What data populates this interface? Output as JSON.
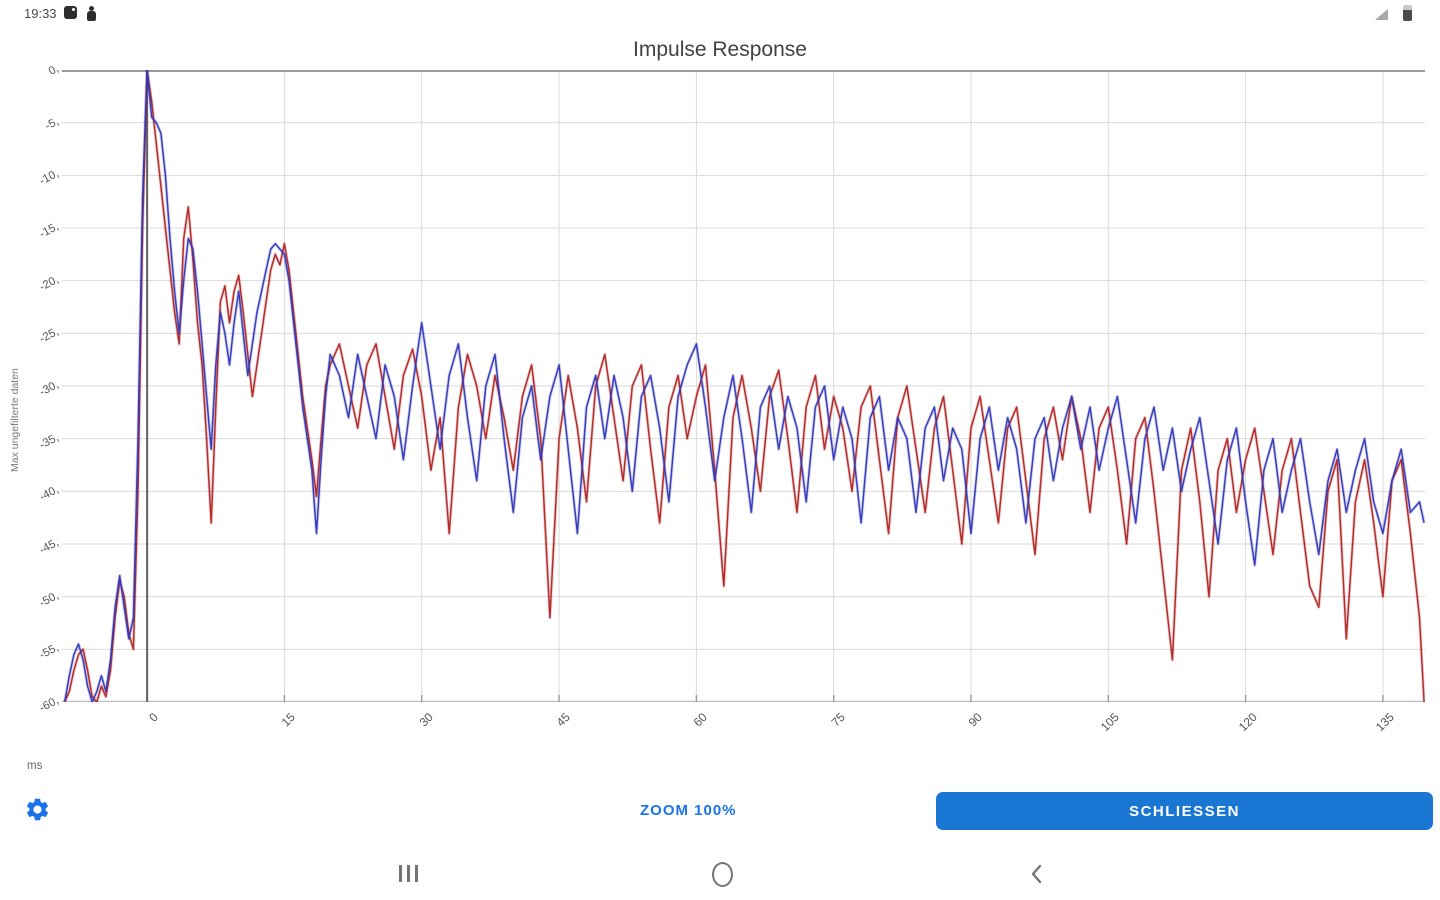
{
  "colors": {
    "accent": "#1a73e8",
    "close_button_bg": "#1976d2",
    "series_red": "#b02525",
    "series_blue": "#3137b8",
    "grid_line": "#d9d9d9",
    "axis_line": "#9a9a9a",
    "bottom_line": "#bdbdbd",
    "marker_line": "#606060",
    "tick_text": "#555555"
  },
  "status_bar": {
    "time": "19:33"
  },
  "chart": {
    "title": "Impulse Response",
    "y_axis_label": "Max ungefilterte daten",
    "x_unit_label": "ms"
  },
  "footer": {
    "zoom_button": "ZOOM 100%",
    "close_button": "SCHLIESSEN"
  },
  "chart_data": {
    "type": "line",
    "title": "Impulse Response",
    "xlabel": "ms",
    "ylabel": "Max ungefilterte daten",
    "xlim": [
      -9.3,
      139.6
    ],
    "ylim": [
      -60,
      0
    ],
    "grid": true,
    "legend": "none",
    "marker_line_x": 0,
    "x_ticks": [
      0,
      15,
      30,
      45,
      60,
      75,
      90,
      105,
      120,
      135
    ],
    "x_tick_labels": [
      "0",
      "15",
      "30",
      "45",
      "60",
      "75",
      "90",
      "105",
      "120",
      "135"
    ],
    "y_ticks": [
      0,
      -5,
      -10,
      -15,
      -20,
      -25,
      -30,
      -35,
      -40,
      -45,
      -50,
      -55,
      -60
    ],
    "y_tick_labels": [
      "0,",
      "-5,",
      "-10,",
      "-15,",
      "-20,",
      "-25,",
      "-30,",
      "-35,",
      "-40,",
      "-45,",
      "-50,",
      "-55,",
      "-60,"
    ],
    "x": [
      -9,
      -8.5,
      -8,
      -7.5,
      -7,
      -6.5,
      -6,
      -5.5,
      -5,
      -4.5,
      -4,
      -3.5,
      -3,
      -2.5,
      -2,
      -1.5,
      -1,
      -0.5,
      0,
      0.5,
      1,
      1.5,
      2,
      2.5,
      3,
      3.5,
      4,
      4.5,
      5,
      5.5,
      6,
      6.5,
      7,
      7.5,
      8,
      8.5,
      9,
      9.5,
      10,
      10.5,
      11,
      11.5,
      12,
      12.5,
      13,
      13.5,
      14,
      14.5,
      15,
      15.5,
      16,
      16.5,
      17,
      17.5,
      18,
      18.5,
      19,
      19.5,
      20,
      21,
      22,
      23,
      24,
      25,
      26,
      27,
      28,
      29,
      30,
      31,
      32,
      33,
      34,
      35,
      36,
      37,
      38,
      39,
      40,
      41,
      42,
      43,
      44,
      45,
      46,
      47,
      48,
      49,
      50,
      51,
      52,
      53,
      54,
      55,
      56,
      57,
      58,
      59,
      60,
      61,
      62,
      63,
      64,
      65,
      66,
      67,
      68,
      69,
      70,
      71,
      72,
      73,
      74,
      75,
      76,
      77,
      78,
      79,
      80,
      81,
      82,
      83,
      84,
      85,
      86,
      87,
      88,
      89,
      90,
      91,
      92,
      93,
      94,
      95,
      96,
      97,
      98,
      99,
      100,
      101,
      102,
      103,
      104,
      105,
      106,
      107,
      108,
      109,
      110,
      111,
      112,
      113,
      114,
      115,
      116,
      117,
      118,
      119,
      120,
      121,
      122,
      123,
      124,
      125,
      126,
      127,
      128,
      129,
      130,
      131,
      132,
      133,
      134,
      135,
      136,
      137,
      138,
      139,
      139.5
    ],
    "series": [
      {
        "name": "red-channel",
        "color": "#b02525",
        "values": [
          -60,
          -59,
          -57,
          -55.5,
          -55,
          -57,
          -59.5,
          -60,
          -58.5,
          -59.5,
          -57,
          -52,
          -48.5,
          -50,
          -53.5,
          -55,
          -40,
          -15,
          0,
          -3,
          -7,
          -11,
          -15,
          -19,
          -23,
          -26,
          -16,
          -13,
          -18,
          -24,
          -28,
          -35,
          -43,
          -32,
          -22,
          -20.5,
          -24,
          -21,
          -19.5,
          -23,
          -27,
          -31,
          -28,
          -25,
          -22,
          -19,
          -17.5,
          -18.5,
          -16.5,
          -19,
          -23,
          -27,
          -31,
          -34,
          -37,
          -40.5,
          -35,
          -30,
          -28,
          -26,
          -30,
          -34,
          -28,
          -26,
          -31,
          -36,
          -29,
          -26.5,
          -31,
          -38,
          -33,
          -44,
          -32,
          -27,
          -30,
          -35,
          -29,
          -33,
          -38,
          -31,
          -28,
          -35,
          -52,
          -35,
          -29,
          -34,
          -41,
          -30,
          -27,
          -33,
          -39,
          -30,
          -28,
          -36,
          -43,
          -32,
          -29,
          -35,
          -31,
          -28,
          -38,
          -49,
          -33,
          -29,
          -34,
          -40,
          -31,
          -28.5,
          -35,
          -42,
          -32,
          -29,
          -36,
          -31,
          -34,
          -40,
          -32,
          -30,
          -37,
          -44,
          -33,
          -30,
          -36,
          -42,
          -34,
          -31,
          -38,
          -45,
          -34,
          -31,
          -37,
          -43,
          -34,
          -32,
          -39,
          -46,
          -35,
          -32,
          -37,
          -31,
          -35,
          -42,
          -34,
          -32,
          -38,
          -45,
          -35,
          -33,
          -40,
          -48,
          -56,
          -38,
          -34,
          -41,
          -50,
          -38,
          -35,
          -42,
          -37,
          -34,
          -40,
          -46,
          -38,
          -35,
          -42,
          -49,
          -51,
          -40,
          -37,
          -54,
          -41,
          -37,
          -43,
          -50,
          -39,
          -37,
          -44,
          -52,
          -60
        ]
      },
      {
        "name": "blue-channel",
        "color": "#3137b8",
        "values": [
          -60,
          -57.5,
          -55.5,
          -54.5,
          -56,
          -58.5,
          -60,
          -59,
          -57.5,
          -59,
          -56,
          -51,
          -48,
          -51,
          -54,
          -52,
          -35,
          -12,
          0,
          -4.5,
          -5,
          -6,
          -10,
          -16,
          -21,
          -25,
          -20,
          -16,
          -17,
          -21,
          -26,
          -31,
          -36,
          -28,
          -23,
          -25,
          -28,
          -24,
          -21,
          -25,
          -29,
          -26,
          -23,
          -21,
          -19,
          -17,
          -16.5,
          -17,
          -17.5,
          -20,
          -24,
          -28,
          -32,
          -35,
          -38,
          -44,
          -37,
          -31,
          -27,
          -29,
          -33,
          -27,
          -31,
          -35,
          -28,
          -31,
          -37,
          -30,
          -24,
          -30,
          -36,
          -29,
          -26,
          -33,
          -39,
          -30,
          -27,
          -35,
          -42,
          -33,
          -30,
          -37,
          -31,
          -28,
          -36,
          -44,
          -32,
          -29,
          -35,
          -29,
          -33,
          -40,
          -31,
          -29,
          -34,
          -41,
          -31,
          -28,
          -26,
          -32,
          -39,
          -33,
          -29,
          -35,
          -42,
          -32,
          -30,
          -36,
          -31,
          -34,
          -41,
          -32,
          -30,
          -37,
          -32,
          -35,
          -43,
          -33,
          -31,
          -38,
          -33,
          -35,
          -42,
          -34,
          -32,
          -39,
          -34,
          -36,
          -44,
          -35,
          -32,
          -38,
          -33,
          -36,
          -43,
          -35,
          -33,
          -39,
          -34,
          -31,
          -36,
          -32,
          -38,
          -34,
          -31,
          -37,
          -43,
          -35,
          -32,
          -38,
          -34,
          -40,
          -36,
          -33,
          -39,
          -45,
          -37,
          -34,
          -41,
          -47,
          -38,
          -35,
          -42,
          -38,
          -35,
          -41,
          -46,
          -39,
          -36,
          -42,
          -38,
          -35,
          -41,
          -44,
          -39,
          -36,
          -42,
          -41,
          -43
        ]
      }
    ]
  }
}
